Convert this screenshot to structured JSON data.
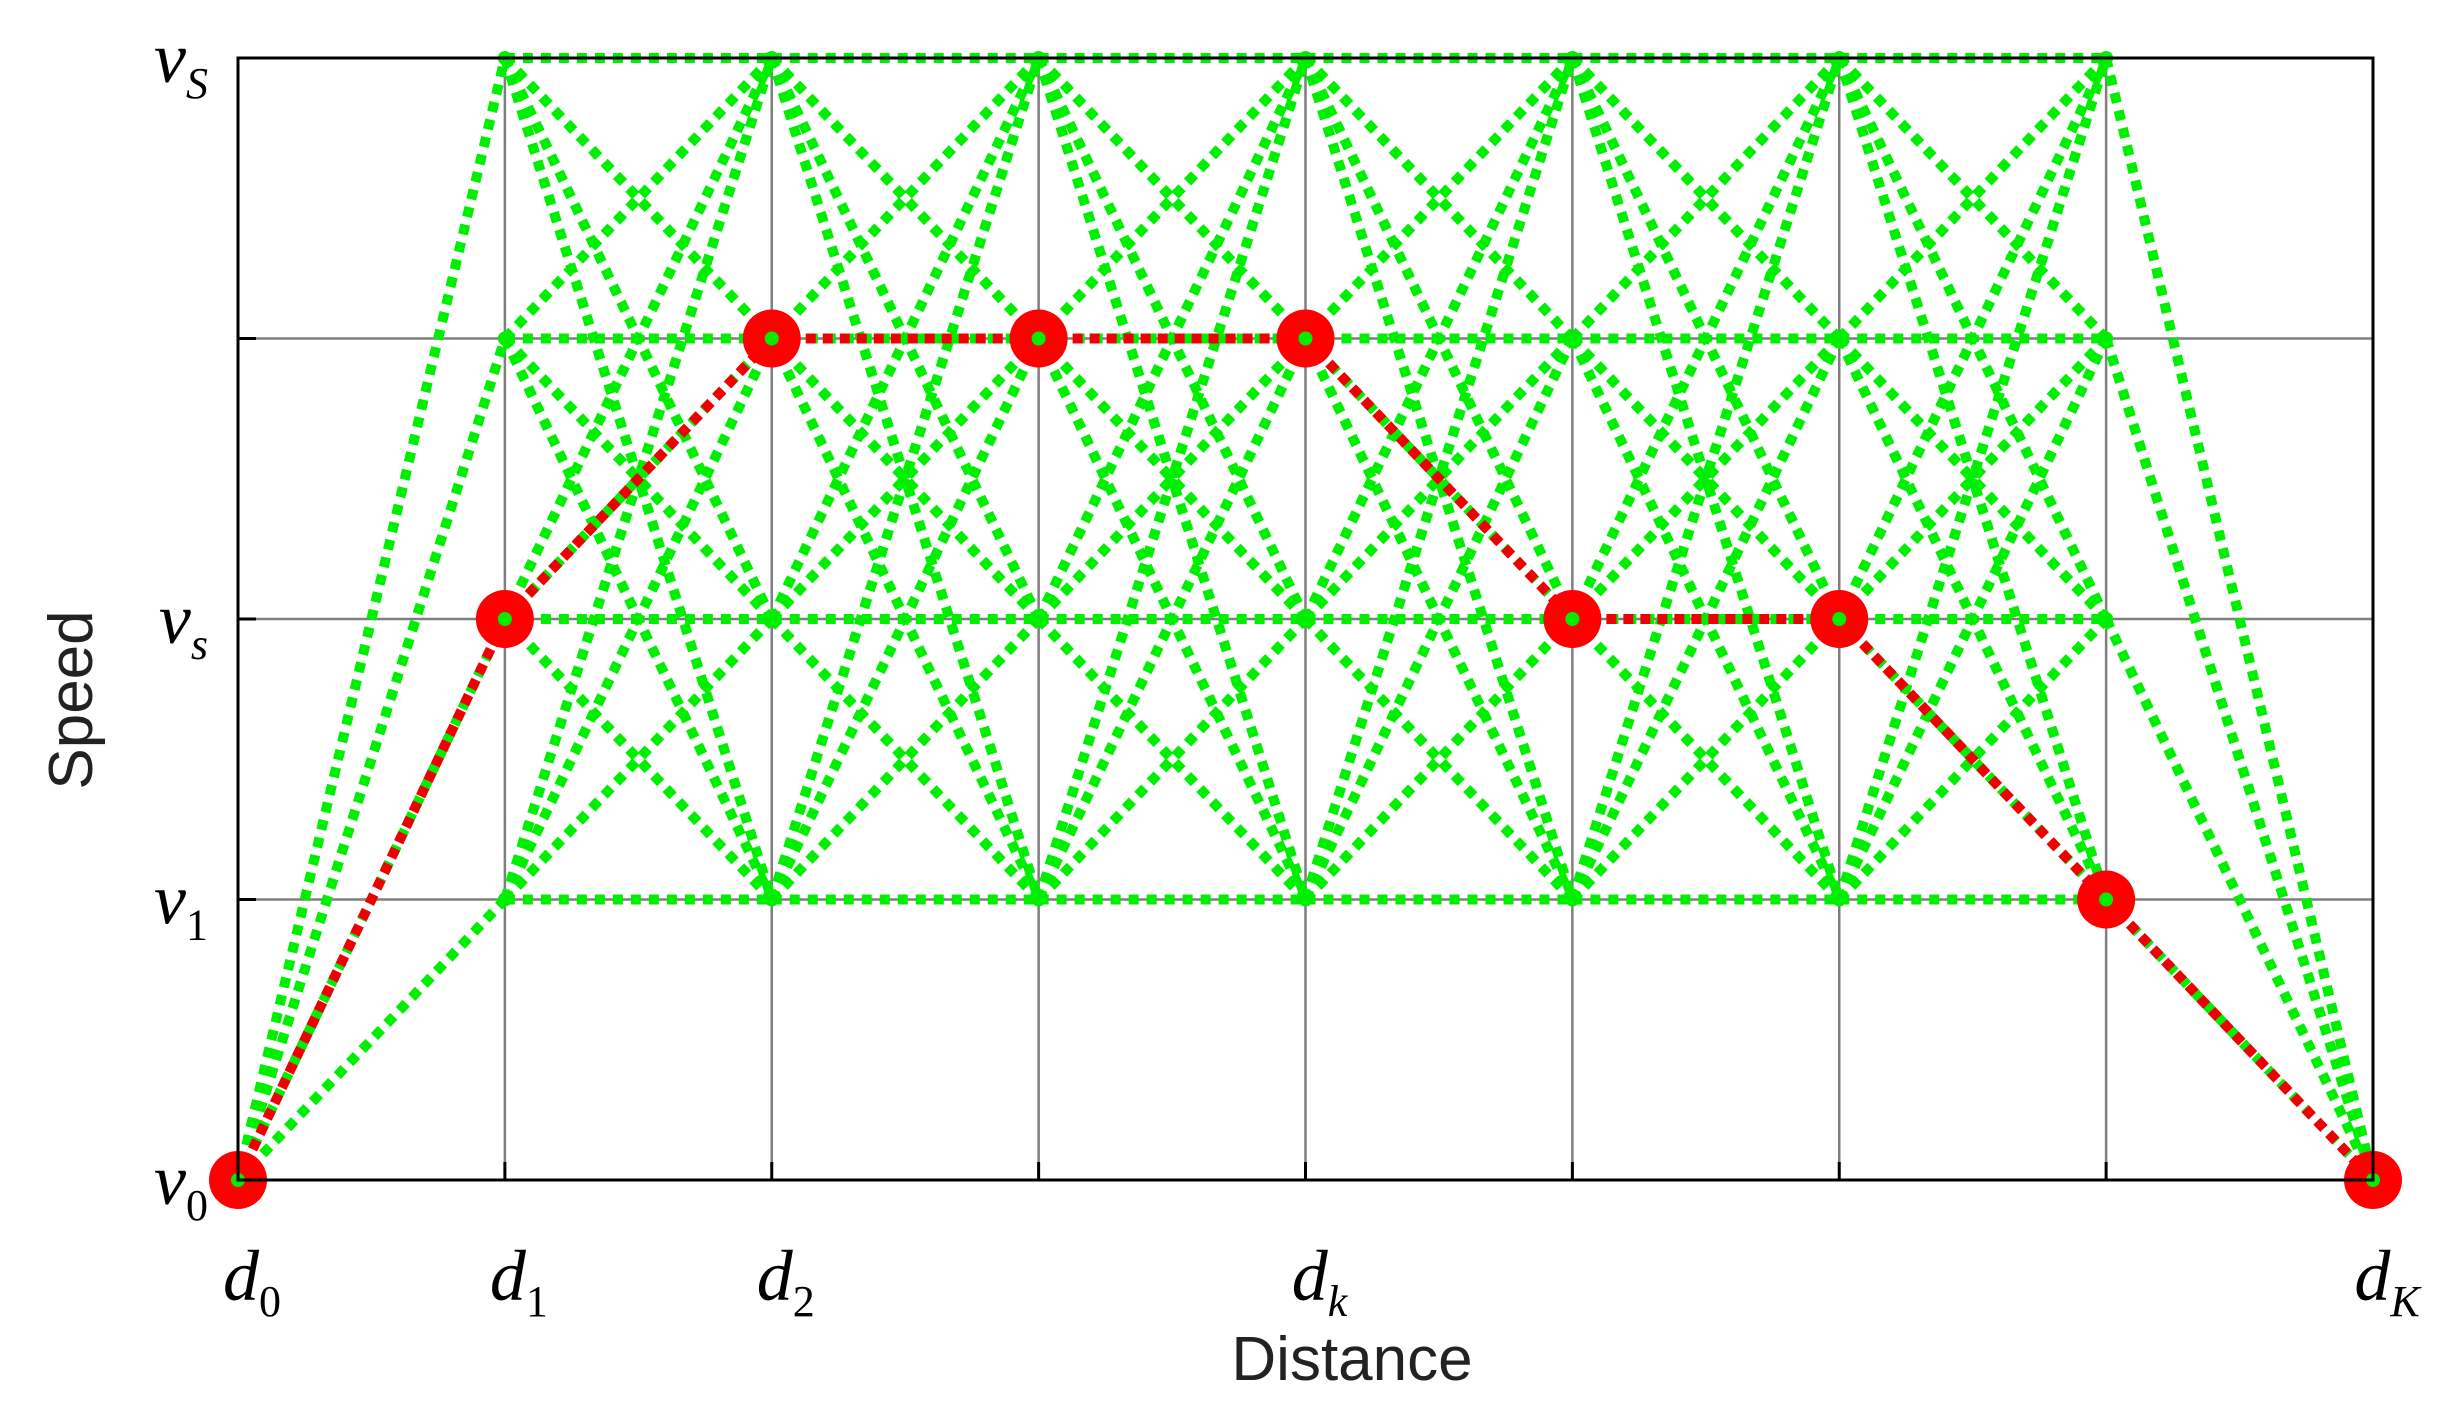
{
  "chart_data": {
    "type": "line",
    "xlabel": "Distance",
    "ylabel": "Speed",
    "x_grid_count": 9,
    "y_levels": 5,
    "x_tick_labels": [
      {
        "index": 0,
        "main": "d",
        "sub": "0",
        "sub_italic": false
      },
      {
        "index": 1,
        "main": "d",
        "sub": "1",
        "sub_italic": false
      },
      {
        "index": 2,
        "main": "d",
        "sub": "2",
        "sub_italic": false
      },
      {
        "index": 4,
        "main": "d",
        "sub": "k",
        "sub_italic": true
      },
      {
        "index": 8,
        "main": "d",
        "sub": "K",
        "sub_italic": true
      }
    ],
    "y_tick_labels": [
      {
        "level": 0,
        "main": "v",
        "sub": "0",
        "sub_italic": false
      },
      {
        "level": 1,
        "main": "v",
        "sub": "1",
        "sub_italic": false
      },
      {
        "level": 2,
        "main": "v",
        "sub": "s",
        "sub_italic": true
      },
      {
        "level": 4,
        "main": "v",
        "sub": "S",
        "sub_italic": true
      }
    ],
    "grid": true,
    "series": [
      {
        "role": "candidate-transitions",
        "color": "#00ee00",
        "style": "dotted",
        "node_columns": [
          1,
          2,
          3,
          4,
          5,
          6,
          7
        ],
        "node_levels": [
          1,
          2,
          3,
          4
        ],
        "start": {
          "x": 0,
          "level": 0
        },
        "end": {
          "x": 8,
          "level": 0
        }
      },
      {
        "role": "optimal-path",
        "color": "#ee0000",
        "style": "dotted",
        "points": [
          {
            "x": 0,
            "level": 0
          },
          {
            "x": 1,
            "level": 2
          },
          {
            "x": 2,
            "level": 3
          },
          {
            "x": 3,
            "level": 3
          },
          {
            "x": 4,
            "level": 3
          },
          {
            "x": 5,
            "level": 2
          },
          {
            "x": 6,
            "level": 2
          },
          {
            "x": 7,
            "level": 1
          },
          {
            "x": 8,
            "level": 0
          }
        ]
      }
    ]
  },
  "colors": {
    "grid": "#7f7f7f",
    "axis": "#000000",
    "candidate": "#00ee00",
    "optimal": "#ee0000",
    "marker": "#ff0000"
  }
}
